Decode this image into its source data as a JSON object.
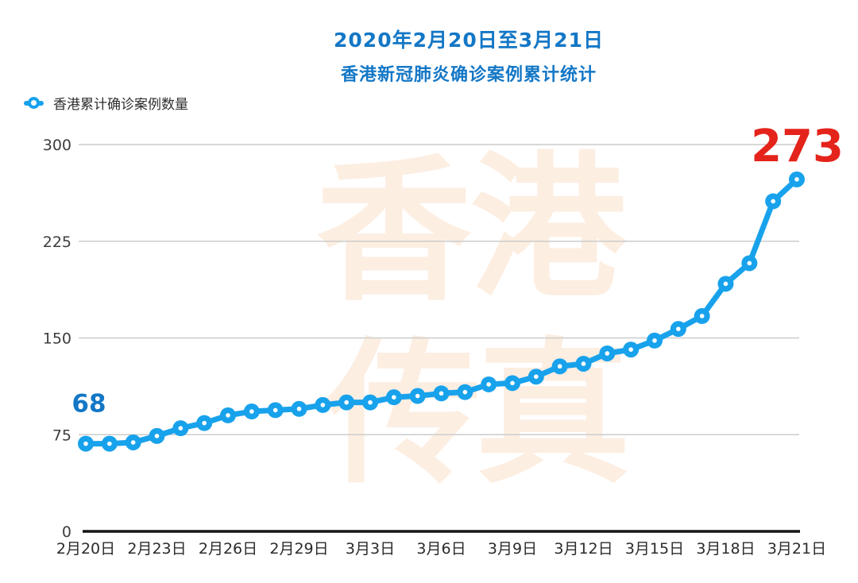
{
  "header": {
    "title_line1": "2020年2月20日至3月21日",
    "title_line2": "香港新冠肺炎确诊案例累计统计"
  },
  "watermark": {
    "text": "香港传真",
    "chars": [
      "香",
      "港",
      "传",
      "真"
    ],
    "color": "#fdeee2"
  },
  "colors": {
    "line": "#18a2ec",
    "marker_hole": "#ffffff",
    "title_blue": "#1377c6",
    "annotation_start_blue": "#1377c6",
    "annotation_end_red": "#e4231b",
    "gridline": "#cccccc",
    "axis": "#151515",
    "tick_text": "#3d3d3d"
  },
  "chart_data": {
    "type": "line",
    "title": "2020年2月20日至3月21日 香港新冠肺炎确诊案例累计统计",
    "legend": [
      "香港累计确诊案例数量"
    ],
    "legend_position": "top-left",
    "categories": [
      "2月20日",
      "2月21日",
      "2月22日",
      "2月23日",
      "2月24日",
      "2月25日",
      "2月26日",
      "2月27日",
      "2月28日",
      "2月29日",
      "3月1日",
      "3月2日",
      "3月3日",
      "3月4日",
      "3月5日",
      "3月6日",
      "3月7日",
      "3月8日",
      "3月9日",
      "3月10日",
      "3月11日",
      "3月12日",
      "3月13日",
      "3月14日",
      "3月15日",
      "3月16日",
      "3月17日",
      "3月18日",
      "3月19日",
      "3月20日",
      "3月21日"
    ],
    "values": [
      68,
      68,
      69,
      74,
      80,
      84,
      90,
      93,
      94,
      95,
      98,
      100,
      100,
      104,
      105,
      107,
      108,
      114,
      115,
      120,
      128,
      130,
      138,
      141,
      148,
      157,
      167,
      192,
      208,
      256,
      273
    ],
    "x_axis_tick_labels": [
      "2月20日",
      "2月23日",
      "2月26日",
      "2月29日",
      "3月3日",
      "3月6日",
      "3月9日",
      "3月12日",
      "3月15日",
      "3月18日",
      "3月21日"
    ],
    "x_tick_every": 3,
    "y_ticks": [
      0,
      75,
      150,
      225,
      300
    ],
    "ylim": [
      0,
      300
    ],
    "grid": "horizontal",
    "annotations": [
      {
        "text": "68",
        "point_index": 0,
        "color": "#1377c6"
      },
      {
        "text": "273",
        "point_index": 30,
        "color": "#e4231b"
      }
    ]
  }
}
